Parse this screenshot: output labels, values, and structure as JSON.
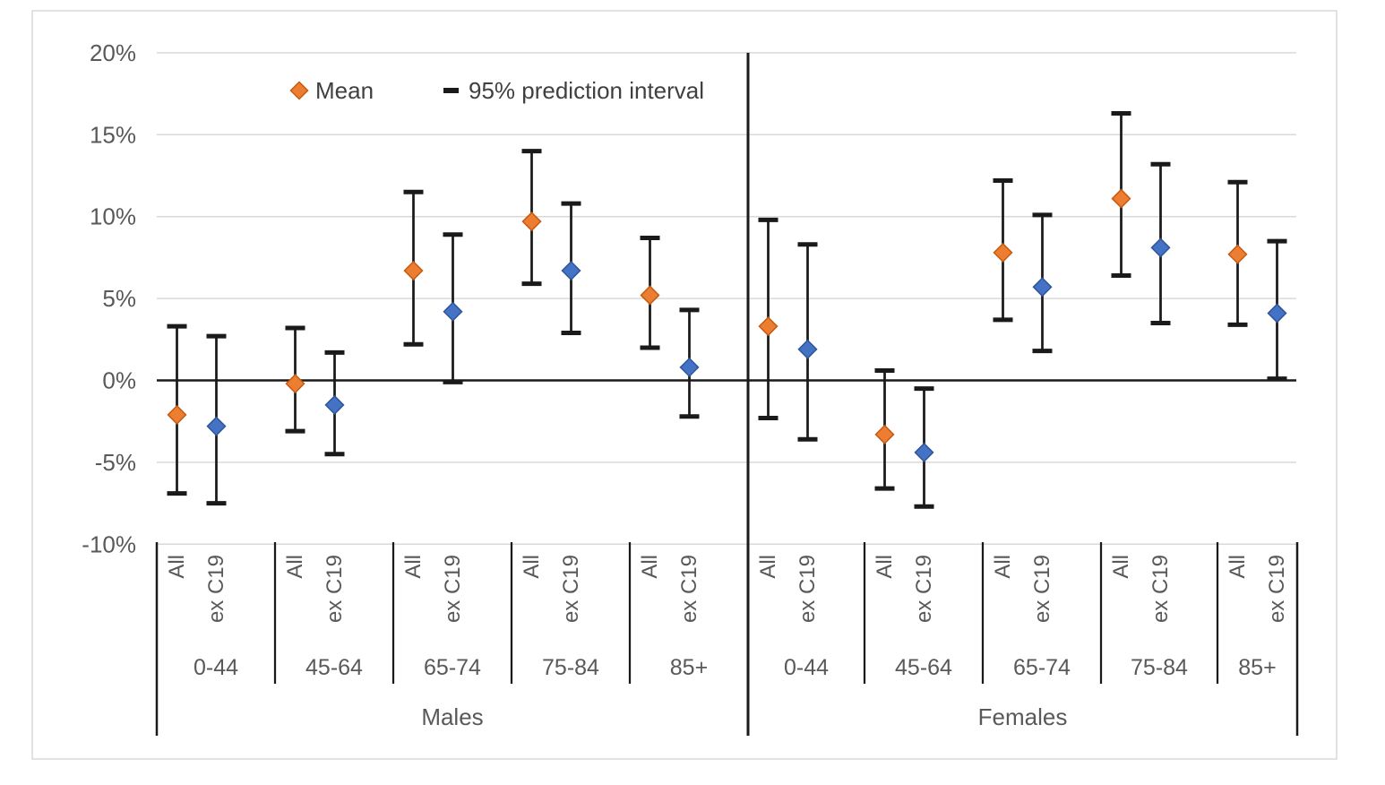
{
  "chart_data": {
    "type": "scatter",
    "title": "",
    "legend": {
      "mean_label": "Mean",
      "interval_label": "95% prediction interval"
    },
    "y_axis": {
      "min": -10,
      "max": 20,
      "step": 5,
      "tick_labels": [
        "20%",
        "15%",
        "10%",
        "5%",
        "0%",
        "-5%",
        "-10%"
      ],
      "tick_values": [
        20,
        15,
        10,
        5,
        0,
        -5,
        -10
      ]
    },
    "series": [
      {
        "key": "all",
        "label": "All"
      },
      {
        "key": "ex",
        "label": "ex C19"
      }
    ],
    "gender_sections": [
      {
        "label": "Males",
        "groups": [
          {
            "age": "0-44",
            "all": {
              "mean": -2.1,
              "hi": 3.3,
              "lo": -6.9
            },
            "ex": {
              "mean": -2.8,
              "hi": 2.7,
              "lo": -7.5
            }
          },
          {
            "age": "45-64",
            "all": {
              "mean": -0.2,
              "hi": 3.2,
              "lo": -3.1
            },
            "ex": {
              "mean": -1.5,
              "hi": 1.7,
              "lo": -4.5
            }
          },
          {
            "age": "65-74",
            "all": {
              "mean": 6.7,
              "hi": 11.5,
              "lo": 2.2
            },
            "ex": {
              "mean": 4.2,
              "hi": 8.9,
              "lo": -0.1
            }
          },
          {
            "age": "75-84",
            "all": {
              "mean": 9.7,
              "hi": 14.0,
              "lo": 5.9
            },
            "ex": {
              "mean": 6.7,
              "hi": 10.8,
              "lo": 2.9
            }
          },
          {
            "age": "85+",
            "all": {
              "mean": 5.2,
              "hi": 8.7,
              "lo": 2.0
            },
            "ex": {
              "mean": 0.8,
              "hi": 4.3,
              "lo": -2.2
            }
          }
        ]
      },
      {
        "label": "Females",
        "groups": [
          {
            "age": "0-44",
            "all": {
              "mean": 3.3,
              "hi": 9.8,
              "lo": -2.3
            },
            "ex": {
              "mean": 1.9,
              "hi": 8.3,
              "lo": -3.6
            }
          },
          {
            "age": "45-64",
            "all": {
              "mean": -3.3,
              "hi": 0.6,
              "lo": -6.6
            },
            "ex": {
              "mean": -4.4,
              "hi": -0.5,
              "lo": -7.7
            }
          },
          {
            "age": "65-74",
            "all": {
              "mean": 7.8,
              "hi": 12.2,
              "lo": 3.7
            },
            "ex": {
              "mean": 5.7,
              "hi": 10.1,
              "lo": 1.8
            }
          },
          {
            "age": "75-84",
            "all": {
              "mean": 11.1,
              "hi": 16.3,
              "lo": 6.4
            },
            "ex": {
              "mean": 8.1,
              "hi": 13.2,
              "lo": 3.5
            }
          },
          {
            "age": "85+",
            "all": {
              "mean": 7.7,
              "hi": 12.1,
              "lo": 3.4
            },
            "ex": {
              "mean": 4.1,
              "hi": 8.5,
              "lo": 0.1
            }
          }
        ]
      }
    ],
    "colors": {
      "mean_all": "#ED7D31",
      "mean_all_stroke": "#C55A11",
      "mean_ex": "#4472C4",
      "mean_ex_stroke": "#2F5597",
      "error_bar": "#1a1a1a",
      "gridline": "#D9D9D9",
      "axis_line": "#1a1a1a",
      "text": "#595959",
      "plot_border": "#D9D9D9"
    },
    "layout_hints": {
      "grid": "horizontal",
      "legend_position": "top-inside",
      "zero_line": true
    }
  }
}
